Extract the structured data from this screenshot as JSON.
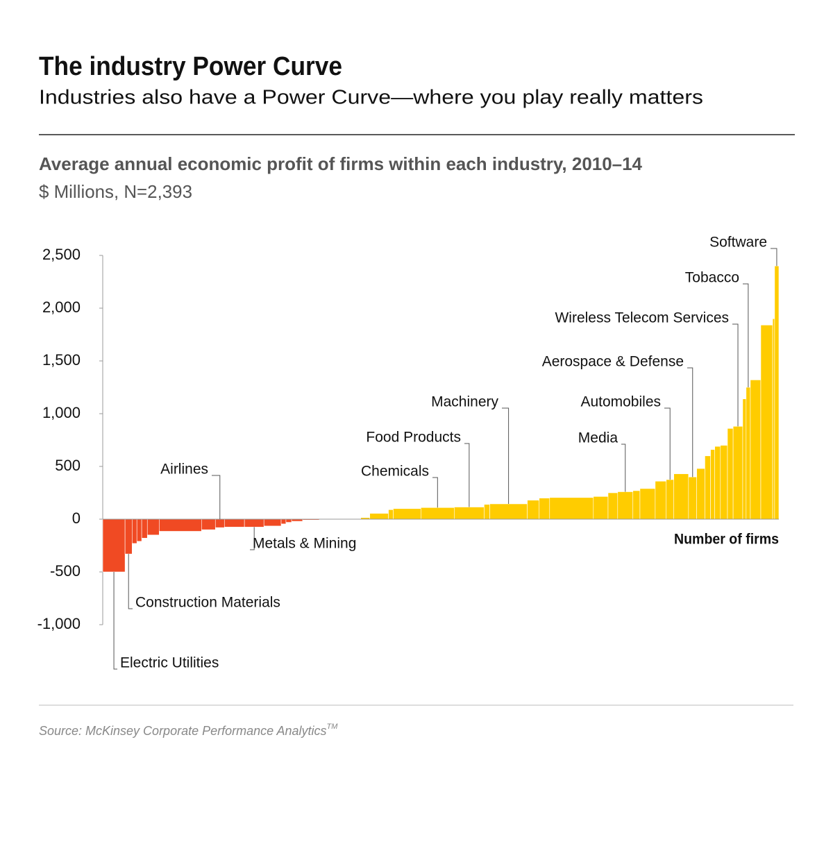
{
  "chart_data": {
    "type": "variable-width-bar",
    "title": "The industry Power Curve",
    "subtitle": "Industries also have a Power Curve—where you play really matters",
    "chart_title": "Average annual economic profit of firms within each industry, 2010–14",
    "units": "$ Millions, N=2,393",
    "x_label": "Number of firms",
    "source": "Source: McKinsey Corporate Performance Analytics",
    "source_mark": "TM",
    "negative_color": "#f04a23",
    "positive_color": "#ffcc00",
    "ylim": [
      -1000,
      2500
    ],
    "yticks": [
      {
        "value": -1000,
        "label": "-1,000"
      },
      -500,
      0,
      500,
      {
        "value": 1000,
        "label": "1,000"
      },
      {
        "value": 1500,
        "label": "1,500"
      },
      {
        "value": 2000,
        "label": "2,000"
      },
      {
        "value": 2500,
        "label": "2,500"
      }
    ],
    "categories": [
      "Electric Utilities",
      "Construction Materials",
      null,
      null,
      null,
      null,
      null,
      null,
      "Airlines",
      null,
      "Metals & Mining",
      null,
      null,
      null,
      null,
      null,
      null,
      null,
      null,
      null,
      null,
      "Chemicals",
      "Food Products",
      null,
      "Machinery",
      null,
      null,
      null,
      null,
      null,
      "Media",
      null,
      null,
      null,
      "Automobiles",
      null,
      "Aerospace & Defense",
      null,
      null,
      null,
      null,
      null,
      null,
      "Wireless Telecom Services",
      null,
      "Tobacco",
      null,
      null,
      null,
      "Software"
    ],
    "widths": [
      79,
      25,
      17,
      17,
      20,
      42,
      150,
      49,
      32,
      71,
      69,
      61,
      17,
      20,
      39,
      59,
      147,
      32,
      66,
      17,
      98,
      118,
      106,
      20,
      133,
      42,
      37,
      155,
      52,
      34,
      54,
      25,
      54,
      39,
      27,
      52,
      29,
      29,
      20,
      15,
      20,
      25,
      20,
      34,
      12,
      15,
      37,
      42,
      7,
      15
    ],
    "values": [
      -500,
      -330,
      -230,
      -210,
      -180,
      -150,
      -115,
      -100,
      -80,
      -75,
      -75,
      -65,
      -45,
      -30,
      -20,
      -8,
      5,
      15,
      55,
      90,
      100,
      110,
      115,
      140,
      145,
      180,
      200,
      205,
      215,
      250,
      260,
      270,
      290,
      360,
      375,
      430,
      400,
      480,
      600,
      660,
      690,
      700,
      860,
      880,
      1140,
      1250,
      1320,
      1840,
      1900,
      2400
    ]
  }
}
